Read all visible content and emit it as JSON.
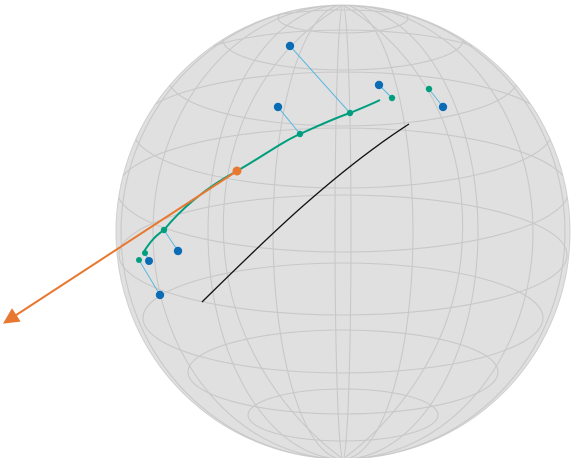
{
  "colors": {
    "sphere_fill": "#e0e0e0",
    "grid": "#c8c8c8",
    "curve": "#009e7e",
    "points": "#0a6cb5",
    "residual": "#5bb8e0",
    "vector": "#e8782f",
    "axis": "#111111"
  },
  "icons": {
    "vector_head": "arrowhead-icon"
  }
}
